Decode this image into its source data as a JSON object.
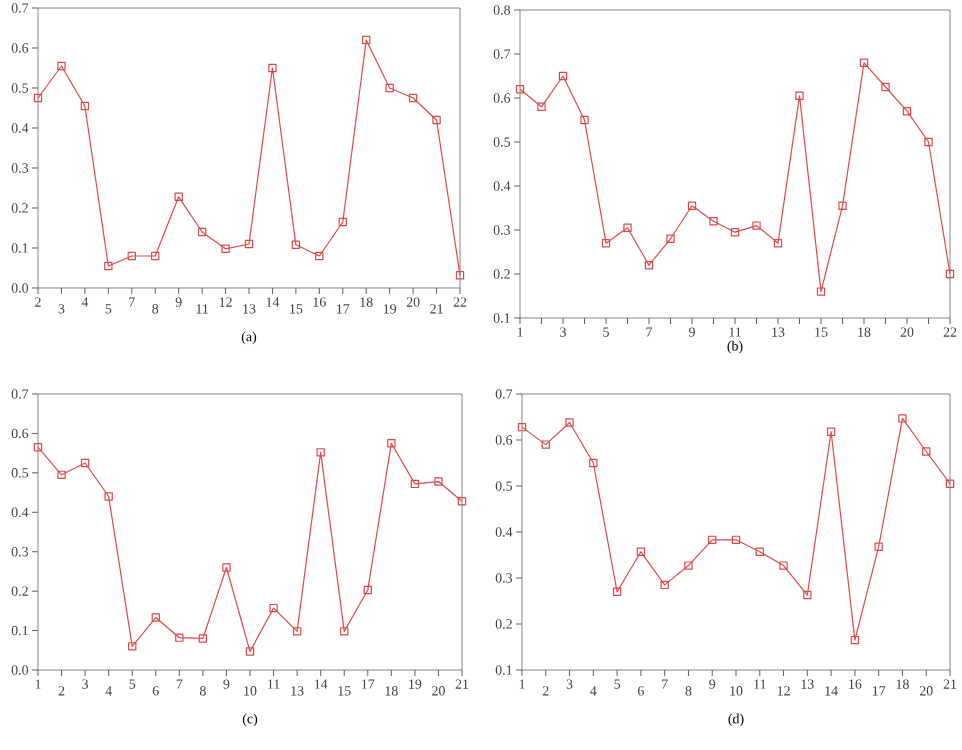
{
  "chart_data": [
    {
      "type": "line",
      "xlabel": "(a)",
      "categories": [
        "2",
        "3",
        "4",
        "5",
        "7",
        "8",
        "9",
        "11",
        "12",
        "13",
        "14",
        "15",
        "16",
        "17",
        "18",
        "19",
        "20",
        "21",
        "22"
      ],
      "values": [
        0.475,
        0.555,
        0.455,
        0.055,
        0.08,
        0.08,
        0.228,
        0.14,
        0.098,
        0.11,
        0.55,
        0.108,
        0.08,
        0.165,
        0.62,
        0.5,
        0.475,
        0.42,
        0.032
      ],
      "color": "#e04848",
      "marker": "square",
      "ylim": [
        0,
        0.7
      ],
      "yticks": [
        {
          "value": 0,
          "label": "0.0"
        },
        0.1,
        0.2,
        0.3,
        0.4,
        0.5,
        0.6,
        0.7
      ]
    },
    {
      "type": "line",
      "xlabel": "(b)",
      "categories": [
        "1",
        null,
        "3",
        null,
        "5",
        null,
        "7",
        null,
        "9",
        null,
        "11",
        null,
        "13",
        null,
        "15",
        null,
        "18",
        null,
        "20",
        null,
        "22"
      ],
      "values": [
        0.62,
        0.58,
        0.65,
        0.55,
        0.27,
        0.305,
        0.22,
        0.28,
        0.355,
        0.32,
        0.295,
        0.31,
        0.27,
        0.605,
        0.16,
        0.355,
        0.68,
        0.625,
        0.57,
        0.5,
        0.2
      ],
      "color": "#e04848",
      "marker": "square",
      "ylim": [
        0.1,
        0.8
      ],
      "yticks": [
        0.1,
        0.2,
        0.3,
        0.4,
        0.5,
        0.6,
        0.7,
        0.8
      ]
    },
    {
      "type": "line",
      "xlabel": "(c)",
      "categories": [
        "1",
        "2",
        "3",
        "4",
        "5",
        "6",
        "7",
        "8",
        "9",
        "10",
        "11",
        "13",
        "14",
        "15",
        "17",
        "18",
        "19",
        "20",
        "21"
      ],
      "values": [
        0.565,
        0.495,
        0.525,
        0.44,
        0.06,
        0.133,
        0.082,
        0.08,
        0.26,
        0.047,
        0.157,
        0.098,
        0.552,
        0.098,
        0.203,
        0.575,
        0.472,
        0.478,
        0.428
      ],
      "color": "#e04848",
      "marker": "square",
      "ylim": [
        0,
        0.7
      ],
      "yticks": [
        {
          "value": 0,
          "label": "0.0"
        },
        0.1,
        0.2,
        0.3,
        0.4,
        0.5,
        0.6,
        0.7
      ]
    },
    {
      "type": "line",
      "xlabel": "(d)",
      "categories": [
        "1",
        "2",
        "3",
        "4",
        "5",
        "6",
        "7",
        "8",
        "9",
        "10",
        "11",
        "12",
        "13",
        "14",
        "16",
        "17",
        "18",
        "20",
        "21"
      ],
      "values": [
        0.628,
        0.59,
        0.638,
        0.55,
        0.27,
        0.357,
        0.285,
        0.327,
        0.383,
        0.383,
        0.357,
        0.327,
        0.263,
        0.618,
        0.165,
        0.368,
        0.647,
        0.575,
        0.505
      ],
      "color": "#e04848",
      "marker": "square",
      "ylim": [
        0.1,
        0.7
      ],
      "yticks": [
        0.1,
        0.2,
        0.3,
        0.4,
        0.5,
        0.6,
        0.7
      ]
    }
  ]
}
